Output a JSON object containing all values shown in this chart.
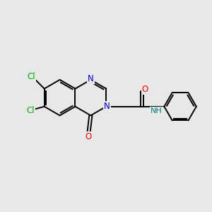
{
  "background_color": "#e8e8e8",
  "bond_color": "#000000",
  "atom_colors": {
    "N": "#0000cc",
    "O": "#ff0000",
    "Cl": "#00aa00",
    "NH": "#008080",
    "C": "#000000"
  },
  "figsize": [
    3.0,
    3.0
  ],
  "dpi": 100,
  "lw": 1.4,
  "fontsize": 8.5
}
